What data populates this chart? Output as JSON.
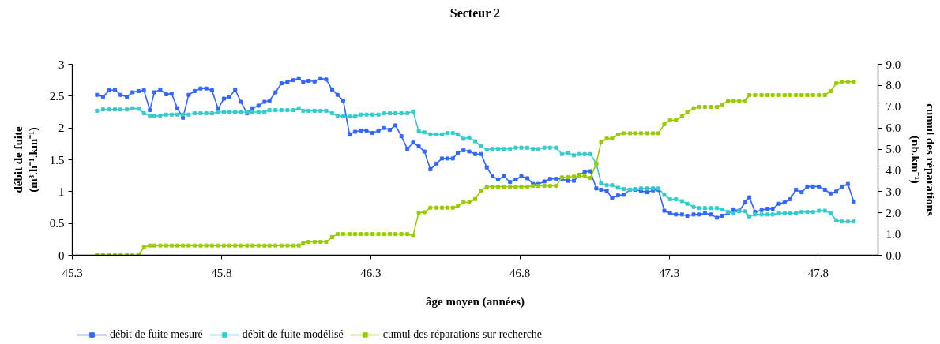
{
  "chart_data": {
    "type": "line",
    "title": "Secteur 2",
    "xlabel": "âge moyen (années)",
    "ylabel": "débit de fuite\n(m³.h⁻¹.km⁻¹)",
    "y2label": "cumul des réparations\n(nb.km⁻¹)",
    "x": [
      45.383,
      45.403,
      45.424,
      45.443,
      45.462,
      45.483,
      45.502,
      45.522,
      45.54,
      45.56,
      45.575,
      45.595,
      45.615,
      45.633,
      45.652,
      45.671,
      45.69,
      45.71,
      45.73,
      45.749,
      45.768,
      45.789,
      45.808,
      45.827,
      45.846,
      45.865,
      45.886,
      45.904,
      45.924,
      45.944,
      45.961,
      45.981,
      46.001,
      46.021,
      46.041,
      46.059,
      46.074,
      46.092,
      46.112,
      46.132,
      46.151,
      46.171,
      46.189,
      46.208,
      46.229,
      46.248,
      46.267,
      46.286,
      46.306,
      46.326,
      46.345,
      46.364,
      46.383,
      46.403,
      46.423,
      46.442,
      46.461,
      46.48,
      46.5,
      46.52,
      46.539,
      46.557,
      46.575,
      46.592,
      46.611,
      46.63,
      46.65,
      46.67,
      46.689,
      46.708,
      46.727,
      46.747,
      46.767,
      46.786,
      46.805,
      46.825,
      46.844,
      46.862,
      46.882,
      46.901,
      46.921,
      46.941,
      46.961,
      46.981,
      46.999,
      47.017,
      47.036,
      47.056,
      47.072,
      47.091,
      47.109,
      47.129,
      47.148,
      47.169,
      47.186,
      47.206,
      47.226,
      47.246,
      47.264,
      47.284,
      47.303,
      47.323,
      47.343,
      47.361,
      47.382,
      47.401,
      47.42,
      47.44,
      47.46,
      47.478,
      47.497,
      47.516,
      47.535,
      47.555,
      47.569,
      47.588,
      47.61,
      47.63,
      47.647,
      47.668,
      47.687,
      47.706,
      47.725,
      47.744,
      47.763,
      47.782,
      47.802,
      47.822,
      47.841,
      47.86,
      47.879,
      47.899,
      47.919
    ],
    "series": [
      {
        "name": "débit de fuite mesuré",
        "color": "#3366ff",
        "values": [
          2.52,
          2.49,
          2.59,
          2.6,
          2.52,
          2.49,
          2.56,
          2.58,
          2.59,
          2.28,
          2.56,
          2.6,
          2.53,
          2.54,
          2.31,
          2.16,
          2.52,
          2.58,
          2.62,
          2.62,
          2.59,
          2.3,
          2.46,
          2.49,
          2.6,
          2.41,
          2.23,
          2.31,
          2.35,
          2.41,
          2.43,
          2.56,
          2.7,
          2.72,
          2.75,
          2.78,
          2.72,
          2.74,
          2.73,
          2.78,
          2.76,
          2.6,
          2.52,
          2.43,
          1.9,
          1.94,
          1.96,
          1.96,
          1.92,
          1.96,
          2.0,
          1.97,
          2.04,
          1.87,
          1.67,
          1.77,
          1.71,
          1.63,
          1.35,
          1.44,
          1.52,
          1.52,
          1.52,
          1.61,
          1.65,
          1.63,
          1.59,
          1.59,
          1.38,
          1.24,
          1.19,
          1.24,
          1.15,
          1.19,
          1.24,
          1.21,
          1.12,
          1.12,
          1.16,
          1.2,
          1.2,
          1.2,
          1.17,
          1.17,
          1.26,
          1.31,
          1.32,
          1.05,
          1.03,
          1.01,
          0.9,
          0.94,
          0.95,
          1.03,
          1.03,
          1.01,
          0.99,
          1.02,
          1.03,
          0.7,
          0.66,
          0.64,
          0.64,
          0.62,
          0.64,
          0.64,
          0.66,
          0.64,
          0.59,
          0.62,
          0.66,
          0.72,
          0.7,
          0.83,
          0.91,
          0.68,
          0.71,
          0.73,
          0.73,
          0.81,
          0.83,
          0.88,
          1.03,
          0.99,
          1.08,
          1.08,
          1.08,
          1.03,
          0.97,
          1.0,
          1.08,
          1.12,
          0.84
        ]
      },
      {
        "name": "débit de fuite modélisé",
        "color": "#33cccc",
        "values": [
          2.27,
          2.29,
          2.29,
          2.29,
          2.29,
          2.29,
          2.31,
          2.3,
          2.23,
          2.19,
          2.19,
          2.19,
          2.21,
          2.21,
          2.21,
          2.21,
          2.21,
          2.23,
          2.23,
          2.23,
          2.23,
          2.25,
          2.25,
          2.25,
          2.25,
          2.25,
          2.25,
          2.25,
          2.25,
          2.25,
          2.28,
          2.28,
          2.28,
          2.28,
          2.28,
          2.31,
          2.27,
          2.27,
          2.27,
          2.27,
          2.27,
          2.23,
          2.19,
          2.18,
          2.18,
          2.18,
          2.21,
          2.21,
          2.21,
          2.21,
          2.23,
          2.23,
          2.23,
          2.23,
          2.23,
          2.26,
          1.95,
          1.93,
          1.9,
          1.9,
          1.9,
          1.92,
          1.92,
          1.9,
          1.83,
          1.85,
          1.79,
          1.71,
          1.66,
          1.67,
          1.67,
          1.67,
          1.67,
          1.69,
          1.69,
          1.69,
          1.67,
          1.67,
          1.69,
          1.69,
          1.69,
          1.59,
          1.61,
          1.57,
          1.59,
          1.59,
          1.59,
          1.44,
          1.13,
          1.1,
          1.1,
          1.06,
          1.04,
          1.03,
          1.04,
          1.05,
          1.05,
          1.05,
          1.05,
          0.95,
          0.88,
          0.88,
          0.85,
          0.81,
          0.76,
          0.74,
          0.74,
          0.74,
          0.74,
          0.72,
          0.68,
          0.67,
          0.69,
          0.69,
          0.61,
          0.64,
          0.64,
          0.64,
          0.64,
          0.66,
          0.66,
          0.66,
          0.66,
          0.68,
          0.68,
          0.68,
          0.7,
          0.7,
          0.66,
          0.55,
          0.53,
          0.53,
          0.53
        ]
      },
      {
        "name": "cumul des réparations sur recherche",
        "color": "#99cc00",
        "axis": "y2",
        "values": [
          0.0,
          0.0,
          0.0,
          0.0,
          0.0,
          0.0,
          0.0,
          0.0,
          0.38,
          0.46,
          0.46,
          0.46,
          0.46,
          0.46,
          0.46,
          0.46,
          0.46,
          0.46,
          0.46,
          0.46,
          0.46,
          0.46,
          0.46,
          0.46,
          0.46,
          0.46,
          0.46,
          0.46,
          0.46,
          0.46,
          0.46,
          0.46,
          0.46,
          0.46,
          0.46,
          0.46,
          0.58,
          0.63,
          0.63,
          0.63,
          0.63,
          0.86,
          1.0,
          1.0,
          1.0,
          1.0,
          1.0,
          1.0,
          1.0,
          1.0,
          1.0,
          1.0,
          1.0,
          1.0,
          1.0,
          0.92,
          2.01,
          2.03,
          2.24,
          2.24,
          2.24,
          2.24,
          2.24,
          2.32,
          2.49,
          2.49,
          2.65,
          3.05,
          3.23,
          3.23,
          3.23,
          3.23,
          3.23,
          3.23,
          3.23,
          3.23,
          3.27,
          3.27,
          3.27,
          3.27,
          3.27,
          3.67,
          3.68,
          3.71,
          3.73,
          3.73,
          3.64,
          4.32,
          5.34,
          5.5,
          5.5,
          5.69,
          5.75,
          5.75,
          5.75,
          5.75,
          5.75,
          5.75,
          5.75,
          6.18,
          6.37,
          6.37,
          6.55,
          6.74,
          6.93,
          6.99,
          6.99,
          6.99,
          6.99,
          7.11,
          7.27,
          7.27,
          7.27,
          7.27,
          7.55,
          7.55,
          7.55,
          7.55,
          7.55,
          7.55,
          7.55,
          7.55,
          7.55,
          7.55,
          7.55,
          7.55,
          7.55,
          7.55,
          7.73,
          8.1,
          8.17,
          8.17,
          8.17
        ]
      }
    ],
    "xlim": [
      45.3,
      48.0
    ],
    "xticks": [
      45.3,
      45.8,
      46.3,
      46.8,
      47.3,
      47.8
    ],
    "ylim": [
      0,
      3
    ],
    "yticks": [
      0,
      0.5,
      1,
      1.5,
      2,
      2.5,
      3
    ],
    "y2lim": [
      0,
      9
    ],
    "y2ticks": [
      {
        "value": 0,
        "label": "0.0"
      },
      {
        "value": 1,
        "label": "1.0"
      },
      {
        "value": 2,
        "label": "2.0"
      },
      {
        "value": 3,
        "label": "3.0"
      },
      {
        "value": 4,
        "label": "4.0"
      },
      {
        "value": 5,
        "label": "5.0"
      },
      {
        "value": 6,
        "label": "6.0"
      },
      {
        "value": 7,
        "label": "7.0"
      },
      {
        "value": 8,
        "label": "8.0"
      },
      {
        "value": 9,
        "label": "9.0"
      }
    ],
    "grid": false,
    "legend": "bottom",
    "marker": "square",
    "line_style": "solid"
  }
}
